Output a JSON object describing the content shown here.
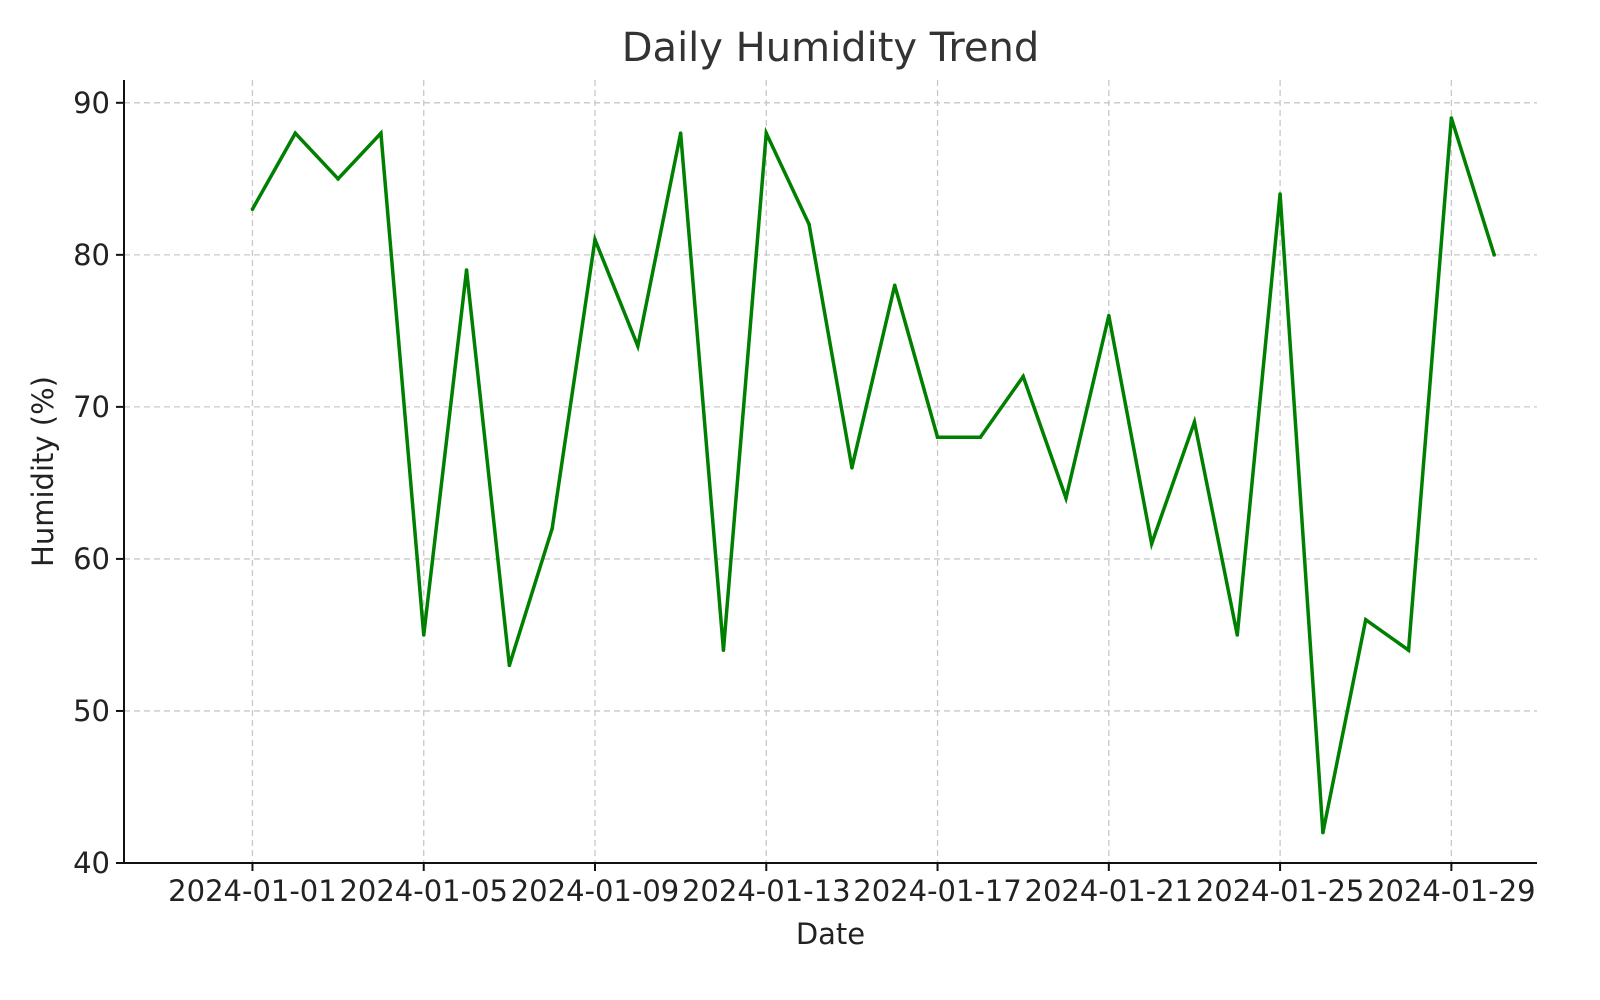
{
  "chart_data": {
    "type": "line",
    "title": "Daily Humidity Trend",
    "xlabel": "Date",
    "ylabel": "Humidity (%)",
    "x": [
      "2024-01-01",
      "2024-01-02",
      "2024-01-03",
      "2024-01-04",
      "2024-01-05",
      "2024-01-06",
      "2024-01-07",
      "2024-01-08",
      "2024-01-09",
      "2024-01-10",
      "2024-01-11",
      "2024-01-12",
      "2024-01-13",
      "2024-01-14",
      "2024-01-15",
      "2024-01-16",
      "2024-01-17",
      "2024-01-18",
      "2024-01-19",
      "2024-01-20",
      "2024-01-21",
      "2024-01-22",
      "2024-01-23",
      "2024-01-24",
      "2024-01-25",
      "2024-01-26",
      "2024-01-27",
      "2024-01-28",
      "2024-01-29",
      "2024-01-30"
    ],
    "series": [
      {
        "color": "#008000",
        "values": [
          83,
          88,
          85,
          88,
          55,
          79,
          53,
          62,
          81,
          74,
          88,
          54,
          88,
          82,
          66,
          78,
          68,
          68,
          72,
          64,
          76,
          61,
          69,
          55,
          84,
          42,
          56,
          54,
          89,
          80
        ]
      }
    ],
    "xticks": [
      "2024-01-01",
      "2024-01-05",
      "2024-01-09",
      "2024-01-13",
      "2024-01-17",
      "2024-01-21",
      "2024-01-25",
      "2024-01-29"
    ],
    "yticks": [
      40,
      50,
      60,
      70,
      80,
      90
    ],
    "xlim": [
      "2023-12-29",
      "2024-01-31"
    ],
    "ylim": [
      40,
      91.5
    ],
    "grid": true,
    "legend": false
  }
}
